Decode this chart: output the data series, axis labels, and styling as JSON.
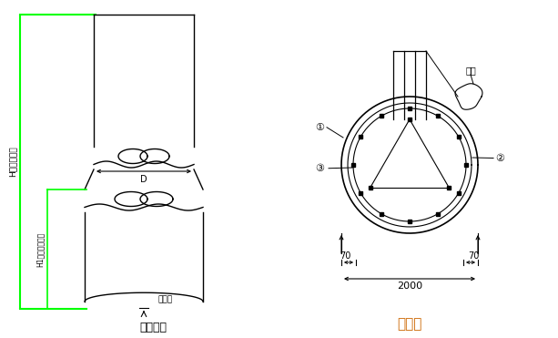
{
  "bg_color": "#ffffff",
  "line_color": "#000000",
  "green_color": "#00ff00",
  "orange_color": "#cc6600",
  "title1": "桩身大样",
  "title2": "桩截面",
  "label_H": "H（桩身长）",
  "label_H1": "H1（入岩深度）",
  "label_D": "D",
  "label_chili": "持力层",
  "label_hanjie": "焊接",
  "dim_70_left": "70",
  "dim_70_right": "70",
  "dim_2000": "2000",
  "label_1": "①",
  "label_2": "②",
  "label_3": "③"
}
